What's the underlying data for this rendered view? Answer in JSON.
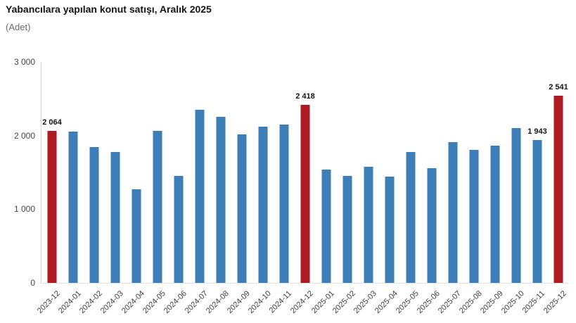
{
  "header": {
    "title": "Yabancılara yapılan konut satışı, Aralık 2025",
    "unit_label": "(Adet)"
  },
  "chart_data": {
    "type": "bar",
    "title": "Yabancılara yapılan konut satışı, Aralık 2025",
    "ylabel": "(Adet)",
    "xlabel": "",
    "ylim": [
      0,
      3000
    ],
    "grid": "off",
    "legend": "none",
    "ytick_labels": [
      "3 000",
      "2 000",
      "1 000",
      "0"
    ],
    "categories": [
      "2023-12",
      "2024-01",
      "2024-02",
      "2024-03",
      "2024-04",
      "2024-05",
      "2024-06",
      "2024-07",
      "2024-08",
      "2024-09",
      "2024-10",
      "2024-11",
      "2024-12",
      "2025-01",
      "2025-02",
      "2025-03",
      "2025-04",
      "2025-05",
      "2025-06",
      "2025-07",
      "2025-08",
      "2025-09",
      "2025-10",
      "2025-11",
      "2025-12"
    ],
    "values": [
      2064,
      2057,
      1844,
      1777,
      1267,
      2060,
      1452,
      2351,
      2255,
      2019,
      2122,
      2153,
      2418,
      1541,
      1455,
      1573,
      1439,
      1774,
      1560,
      1911,
      1803,
      1863,
      2105,
      1943,
      2541
    ],
    "highlighted_indices": [
      0,
      12,
      24
    ],
    "data_labels": {
      "0": "2 064",
      "12": "2 418",
      "23": "1 943",
      "24": "2 541"
    },
    "colors": {
      "bar": "#3c7eb5",
      "highlight": "#ae1a21"
    }
  }
}
